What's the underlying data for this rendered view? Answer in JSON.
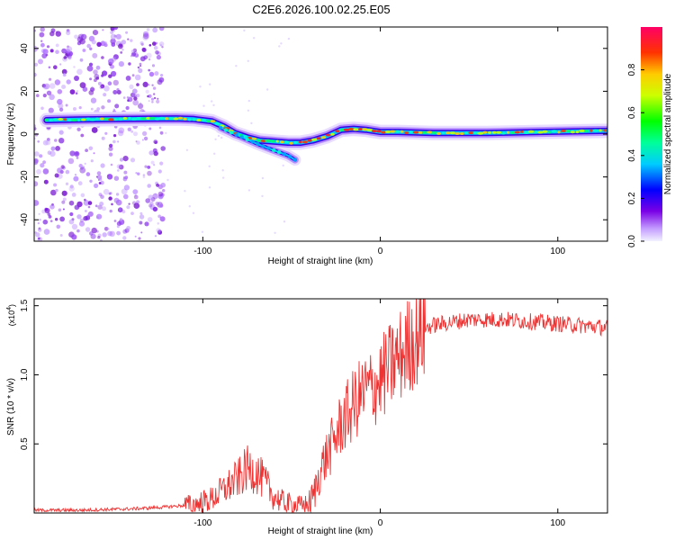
{
  "figure": {
    "title": "C2E6.2026.100.02.25.E05"
  },
  "chart_data": [
    {
      "type": "heatmap",
      "name": "spectrogram",
      "xlabel": "Height of straight line (km)",
      "ylabel": "Frequency (Hz)",
      "xlim": [
        -195,
        128
      ],
      "ylim": [
        -50,
        50
      ],
      "x_ticks": [
        -100,
        0,
        100
      ],
      "x_tick_labels": [
        "-100",
        "0",
        "100"
      ],
      "y_ticks": [
        -40,
        -20,
        0,
        20,
        40
      ],
      "y_tick_labels": [
        "-40",
        "-20",
        "0",
        "20",
        "40"
      ],
      "ridge_line": {
        "description": "dominant spectral track (frequency vs height)",
        "x": [
          -188,
          -170,
          -150,
          -130,
          -115,
          -105,
          -95,
          -88,
          -82,
          -75,
          -68,
          -60,
          -52,
          -45,
          -38,
          -30,
          -22,
          -15,
          -8,
          0,
          10,
          30,
          60,
          90,
          128
        ],
        "y": [
          6.5,
          6.8,
          7.0,
          7.2,
          7.3,
          7.0,
          6.0,
          3.5,
          0.5,
          -1.5,
          -3.0,
          -3.5,
          -4.0,
          -4.0,
          -3.0,
          -1.0,
          2.0,
          2.5,
          2.0,
          1.0,
          1.0,
          0.5,
          0.5,
          1.0,
          1.5
        ]
      },
      "branch_line": {
        "description": "secondary descending track",
        "x": [
          -90,
          -82,
          -75,
          -68,
          -60,
          -52,
          -48
        ],
        "y": [
          3.0,
          0.0,
          -2.5,
          -5.0,
          -7.5,
          -10.0,
          -12.0
        ]
      },
      "noise_region_x": [
        -195,
        -122
      ],
      "colorbar": {
        "label": "Normalized spectral amplitude",
        "range": [
          0.0,
          1.0
        ],
        "ticks": [
          0.0,
          0.2,
          0.4,
          0.6,
          0.8
        ],
        "tick_labels": [
          "0.0",
          "0.2",
          "0.4",
          "0.6",
          "0.8"
        ]
      }
    },
    {
      "type": "line",
      "name": "snr",
      "xlabel": "Height of straight line (km)",
      "ylabel": "SNR (10 * v/v)",
      "multiplier_label": "(x10",
      "multiplier_exp": "4",
      "multiplier_close": ")",
      "xlim": [
        -195,
        128
      ],
      "ylim": [
        0,
        1.55
      ],
      "x_ticks": [
        -100,
        0,
        100
      ],
      "x_tick_labels": [
        "-100",
        "0",
        "100"
      ],
      "y_ticks": [
        0.5,
        1.0,
        1.5
      ],
      "y_tick_labels": [
        "0.5",
        "1.0",
        "1.5"
      ],
      "series": [
        {
          "name": "SNR",
          "color": "#ee3333",
          "x": [
            -195,
            -170,
            -140,
            -125,
            -115,
            -105,
            -95,
            -90,
            -85,
            -80,
            -75,
            -70,
            -65,
            -60,
            -55,
            -50,
            -45,
            -40,
            -37,
            -34,
            -30,
            -26,
            -22,
            -18,
            -14,
            -10,
            -6,
            -2,
            2,
            6,
            10,
            14,
            18,
            22,
            26,
            30,
            40,
            50,
            60,
            70,
            80,
            90,
            100,
            110,
            120,
            128
          ],
          "y": [
            0.02,
            0.02,
            0.03,
            0.04,
            0.05,
            0.06,
            0.1,
            0.15,
            0.2,
            0.25,
            0.32,
            0.3,
            0.22,
            0.12,
            0.08,
            0.06,
            0.05,
            0.06,
            0.15,
            0.3,
            0.42,
            0.52,
            0.65,
            0.72,
            0.8,
            0.86,
            0.9,
            0.93,
            1.0,
            1.06,
            1.12,
            1.18,
            1.25,
            1.3,
            1.34,
            1.36,
            1.38,
            1.4,
            1.4,
            1.4,
            1.39,
            1.38,
            1.37,
            1.36,
            1.35,
            1.34
          ]
        }
      ]
    }
  ]
}
